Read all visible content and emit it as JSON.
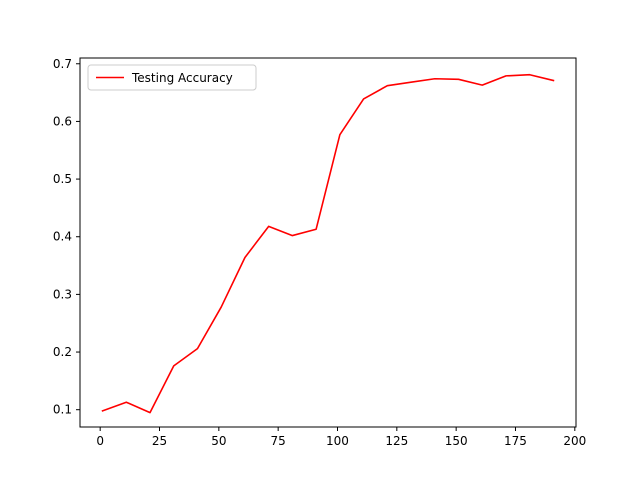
{
  "chart_data": {
    "type": "line",
    "title": "",
    "xlabel": "",
    "ylabel": "",
    "xlim": [
      -8.5,
      200.5
    ],
    "ylim": [
      0.07,
      0.71
    ],
    "xticks": [
      0,
      25,
      50,
      75,
      100,
      125,
      150,
      175,
      200
    ],
    "xtick_labels": [
      "0",
      "25",
      "50",
      "75",
      "100",
      "125",
      "150",
      "175",
      "200"
    ],
    "yticks": [
      0.1,
      0.2,
      0.3,
      0.4,
      0.5,
      0.6,
      0.7
    ],
    "ytick_labels": [
      "0.1",
      "0.2",
      "0.3",
      "0.4",
      "0.5",
      "0.6",
      "0.7"
    ],
    "grid": false,
    "legend_position": "upper-left",
    "series": [
      {
        "name": "Testing Accuracy",
        "color": "#ff0000",
        "x": [
          1,
          11,
          21,
          31,
          41,
          51,
          61,
          71,
          81,
          91,
          101,
          111,
          121,
          131,
          141,
          151,
          161,
          171,
          181,
          191
        ],
        "values": [
          0.098,
          0.113,
          0.095,
          0.176,
          0.206,
          0.278,
          0.364,
          0.418,
          0.402,
          0.413,
          0.577,
          0.639,
          0.662,
          0.668,
          0.674,
          0.673,
          0.663,
          0.679,
          0.681,
          0.671
        ]
      }
    ]
  }
}
